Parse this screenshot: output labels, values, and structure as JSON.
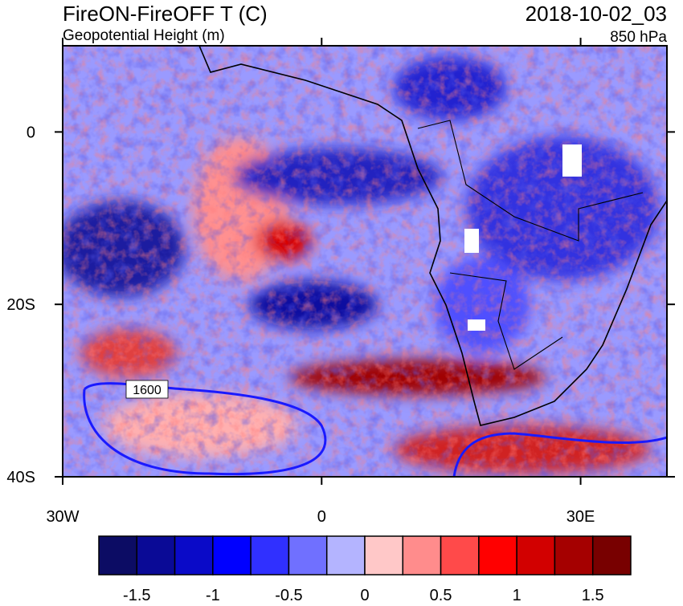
{
  "header": {
    "title": "FireON-FireOFF T (C)",
    "subtitle": "Geopotential Height (m)",
    "date": "2018-10-02_03",
    "level": "850 hPa"
  },
  "map": {
    "xlim": [
      -30,
      40
    ],
    "ylim": [
      -40,
      10
    ],
    "xticks": [
      {
        "value": -30,
        "label": "30W"
      },
      0,
      {
        "value": 30,
        "label": "30E"
      }
    ],
    "yticks": [
      0,
      {
        "value": -20,
        "label": "20S"
      },
      {
        "value": -40,
        "label": "40S"
      }
    ],
    "contour_label": "1600"
  },
  "colorbar": {
    "levels": [
      -1.75,
      -1.5,
      -1.25,
      -1,
      -0.75,
      -0.5,
      -0.25,
      0,
      0.25,
      0.5,
      0.75,
      1,
      1.25,
      1.5,
      1.75
    ],
    "colors": [
      "#0c0c64",
      "#0a0a96",
      "#0a0ac8",
      "#0000ff",
      "#3030ff",
      "#7070ff",
      "#b4b4ff",
      "#ffc8c8",
      "#ff8c8c",
      "#ff4a4a",
      "#ff0000",
      "#d20000",
      "#a50000",
      "#780000"
    ],
    "labels": [
      -1.5,
      -1,
      -0.5,
      0,
      0.5,
      1,
      1.5
    ]
  }
}
